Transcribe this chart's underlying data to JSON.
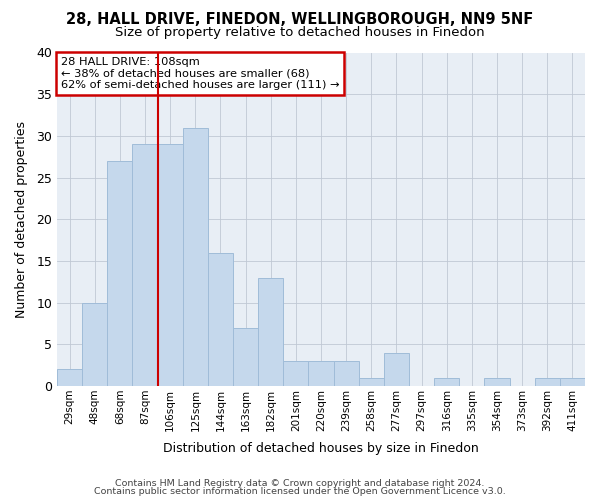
{
  "title1": "28, HALL DRIVE, FINEDON, WELLINGBOROUGH, NN9 5NF",
  "title2": "Size of property relative to detached houses in Finedon",
  "xlabel": "Distribution of detached houses by size in Finedon",
  "ylabel": "Number of detached properties",
  "categories": [
    "29sqm",
    "48sqm",
    "68sqm",
    "87sqm",
    "106sqm",
    "125sqm",
    "144sqm",
    "163sqm",
    "182sqm",
    "201sqm",
    "220sqm",
    "239sqm",
    "258sqm",
    "277sqm",
    "297sqm",
    "316sqm",
    "335sqm",
    "354sqm",
    "373sqm",
    "392sqm",
    "411sqm"
  ],
  "values": [
    2,
    10,
    27,
    29,
    29,
    31,
    16,
    7,
    13,
    3,
    3,
    3,
    1,
    4,
    0,
    1,
    0,
    1,
    0,
    1,
    1
  ],
  "bar_color": "#c5d8ec",
  "bar_edge_color": "#a0bcd8",
  "vline_x_index": 4,
  "vline_color": "#cc0000",
  "annotation_text": "28 HALL DRIVE: 108sqm\n← 38% of detached houses are smaller (68)\n62% of semi-detached houses are larger (111) →",
  "annotation_box_color": "#ffffff",
  "annotation_box_edge_color": "#cc0000",
  "footer1": "Contains HM Land Registry data © Crown copyright and database right 2024.",
  "footer2": "Contains public sector information licensed under the Open Government Licence v3.0.",
  "bg_color": "#ffffff",
  "plot_bg_color": "#e8eef5",
  "ylim": [
    0,
    40
  ],
  "yticks": [
    0,
    5,
    10,
    15,
    20,
    25,
    30,
    35,
    40
  ]
}
